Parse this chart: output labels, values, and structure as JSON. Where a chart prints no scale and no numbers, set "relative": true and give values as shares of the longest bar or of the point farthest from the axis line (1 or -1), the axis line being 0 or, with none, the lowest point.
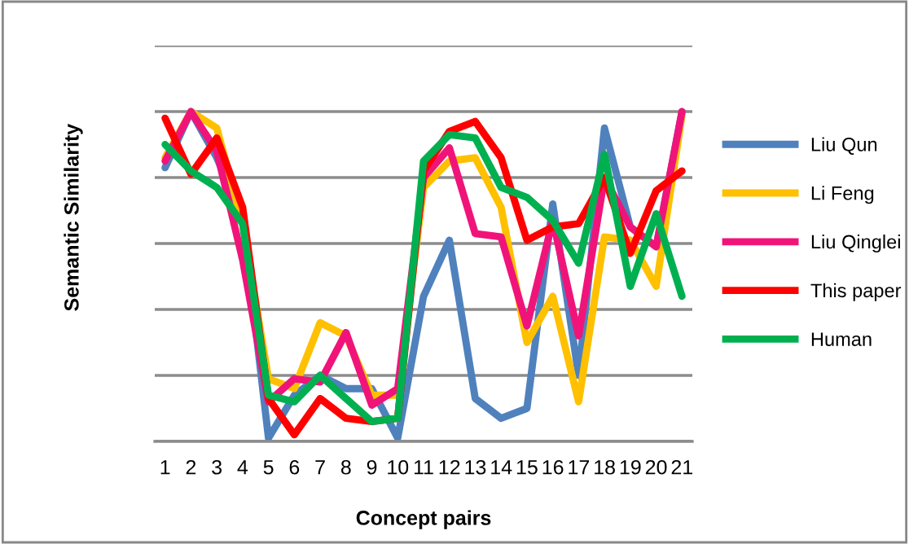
{
  "chart_data": {
    "type": "line",
    "relative": true,
    "xlabel": "Concept pairs",
    "ylabel": "Semantic Similarity",
    "grid": "y",
    "legend": "right",
    "marker": "none",
    "line_style": "solid",
    "categories": [
      "1",
      "2",
      "3",
      "4",
      "5",
      "6",
      "7",
      "8",
      "9",
      "10",
      "11",
      "12",
      "13",
      "14",
      "15",
      "16",
      "17",
      "18",
      "19",
      "20",
      "21"
    ],
    "series": [
      {
        "name": "Liu Qun",
        "color": "#4f81bd",
        "values": [
          0.83,
          1.0,
          0.86,
          0.68,
          0.01,
          0.14,
          0.2,
          0.16,
          0.16,
          0.01,
          0.44,
          0.61,
          0.13,
          0.07,
          0.1,
          0.72,
          0.2,
          0.95,
          0.65,
          0.59,
          1.0
        ]
      },
      {
        "name": "Li Feng",
        "color": "#ffc000",
        "values": [
          0.86,
          1.0,
          0.95,
          0.66,
          0.19,
          0.16,
          0.36,
          0.32,
          0.14,
          0.14,
          0.77,
          0.85,
          0.86,
          0.71,
          0.3,
          0.44,
          0.12,
          0.62,
          0.61,
          0.47,
          0.99
        ]
      },
      {
        "name": "Liu Qinglei",
        "color": "#f0147a",
        "values": [
          0.85,
          1.0,
          0.88,
          0.55,
          0.12,
          0.19,
          0.18,
          0.33,
          0.11,
          0.16,
          0.8,
          0.89,
          0.63,
          0.62,
          0.35,
          0.67,
          0.32,
          0.8,
          0.65,
          0.59,
          1.0
        ]
      },
      {
        "name": "This paper",
        "color": "#ff0000",
        "values": [
          0.98,
          0.81,
          0.92,
          0.71,
          0.13,
          0.02,
          0.13,
          0.07,
          0.06,
          0.07,
          0.82,
          0.94,
          0.97,
          0.86,
          0.61,
          0.65,
          0.66,
          0.8,
          0.57,
          0.76,
          0.82
        ]
      },
      {
        "name": "Human",
        "color": "#00b050",
        "values": [
          0.9,
          0.82,
          0.77,
          0.66,
          0.14,
          0.12,
          0.2,
          0.13,
          0.06,
          0.07,
          0.85,
          0.93,
          0.92,
          0.77,
          0.74,
          0.67,
          0.54,
          0.87,
          0.47,
          0.69,
          0.44
        ]
      }
    ]
  }
}
